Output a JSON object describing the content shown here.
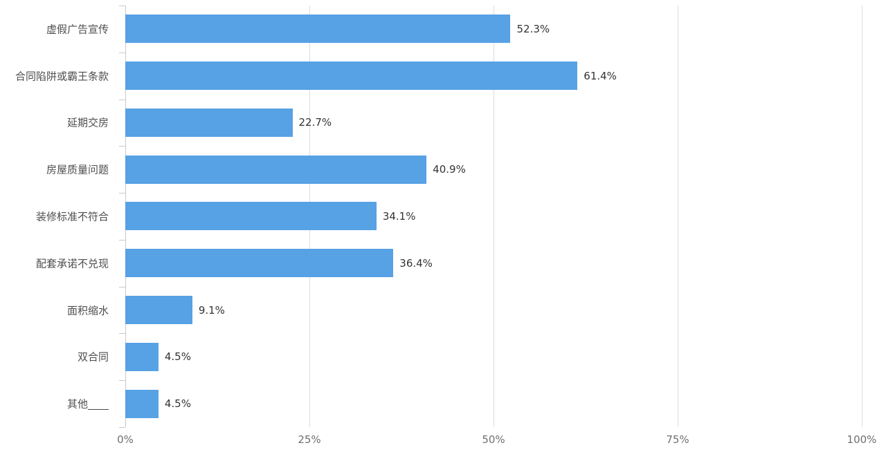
{
  "chart_data": {
    "type": "bar",
    "orientation": "horizontal",
    "title": "",
    "xlabel": "",
    "ylabel": "",
    "categories": [
      "虚假广告宣传",
      "合同陷阱或霸王条款",
      "延期交房",
      "房屋质量问题",
      "装修标准不符合",
      "配套承诺不兑现",
      "面积缩水",
      "双合同",
      "其他____"
    ],
    "values": [
      52.3,
      61.4,
      22.7,
      40.9,
      34.1,
      36.4,
      9.1,
      4.5,
      4.5
    ],
    "value_labels": [
      "52.3%",
      "61.4%",
      "22.7%",
      "40.9%",
      "34.1%",
      "36.4%",
      "9.1%",
      "4.5%",
      "4.5%"
    ],
    "x_ticks": [
      "0%",
      "25%",
      "50%",
      "75%",
      "100%"
    ],
    "x_tick_values": [
      0,
      25,
      50,
      75,
      100
    ],
    "xlim": [
      0,
      100
    ],
    "grid": true,
    "legend_position": "none",
    "colors": {
      "bar": "#57a1e5",
      "gridline": "#dddddd",
      "axis": "#c9c9c9",
      "category_label": "#4d4d4d",
      "value_label": "#333333",
      "x_tick_label": "#6f6f6f",
      "background": "#ffffff"
    }
  }
}
